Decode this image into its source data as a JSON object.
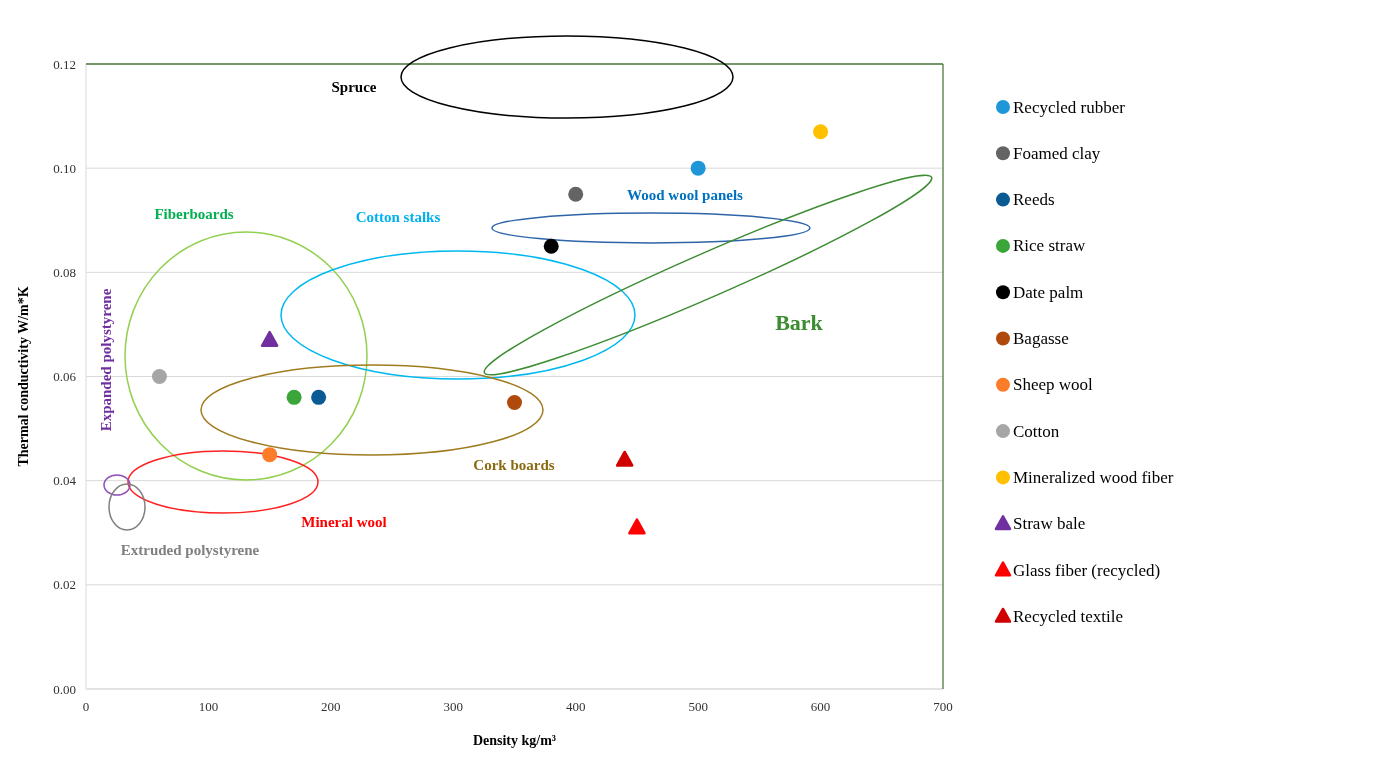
{
  "chart_data": {
    "type": "scatter",
    "xlabel": "Density kg/m³",
    "ylabel": "Thermal conductivity W/m*K",
    "xlim": [
      0,
      700
    ],
    "xticks": [
      0,
      100,
      200,
      300,
      400,
      500,
      600,
      700
    ],
    "ylim": [
      0,
      0.12
    ],
    "yticks": [
      {
        "value": 0,
        "label": "0.00"
      },
      {
        "value": 0.02,
        "label": "0.02"
      },
      {
        "value": 0.04,
        "label": "0.04"
      },
      {
        "value": 0.06,
        "label": "0.06"
      },
      {
        "value": 0.08,
        "label": "0.08"
      },
      {
        "value": 0.1,
        "label": "0.10"
      },
      {
        "value": 0.12,
        "label": "0.12"
      }
    ],
    "grid": "y",
    "legend": "right",
    "series": [
      {
        "name": "Recycled rubber",
        "color": "#1f96d8",
        "marker": "circle",
        "x": [
          500
        ],
        "values": [
          0.1
        ]
      },
      {
        "name": "Foamed clay",
        "color": "#646464",
        "marker": "circle",
        "x": [
          400
        ],
        "values": [
          0.095
        ]
      },
      {
        "name": "Reeds",
        "color": "#0a5a94",
        "marker": "circle",
        "x": [
          190
        ],
        "values": [
          0.056
        ]
      },
      {
        "name": "Rice straw",
        "color": "#3aa63a",
        "marker": "circle",
        "x": [
          170
        ],
        "values": [
          0.056
        ]
      },
      {
        "name": "Date palm",
        "color": "#000000",
        "marker": "circle",
        "x": [
          380
        ],
        "values": [
          0.085
        ]
      },
      {
        "name": "Bagasse",
        "color": "#b04a0c",
        "marker": "circle",
        "x": [
          350
        ],
        "values": [
          0.055
        ]
      },
      {
        "name": "Sheep wool",
        "color": "#fb7d2a",
        "marker": "circle",
        "x": [
          150
        ],
        "values": [
          0.045
        ]
      },
      {
        "name": "Cotton",
        "color": "#a6a6a6",
        "marker": "circle",
        "x": [
          60
        ],
        "values": [
          0.06
        ]
      },
      {
        "name": "Mineralized wood fiber",
        "color": "#ffc000",
        "marker": "circle",
        "x": [
          600
        ],
        "values": [
          0.107
        ]
      },
      {
        "name": "Straw bale",
        "color": "#7030a0",
        "marker": "triangle",
        "x": [
          150
        ],
        "values": [
          0.067
        ]
      },
      {
        "name": "Glass fiber (recycled)",
        "color": "#ff0000",
        "marker": "triangle",
        "x": [
          450
        ],
        "values": [
          0.031
        ]
      },
      {
        "name": "Recycled textile",
        "color": "#d00000",
        "marker": "triangle",
        "x": [
          440
        ],
        "values": [
          0.044
        ]
      }
    ],
    "annotations": [
      "Spruce",
      "Fiberboards",
      "Cotton stalks",
      "Wood wool panels",
      "Bark",
      "Cork boards",
      "Mineral wool",
      "Expanded polystyrene",
      "Extruded polystyrene"
    ]
  }
}
